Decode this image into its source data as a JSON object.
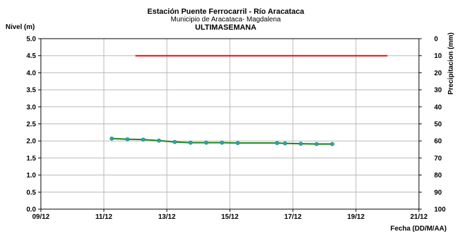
{
  "chart_data": {
    "type": "line",
    "title": "Estación Puente Ferrocarril - Río Aracataca",
    "subtitle": "Municipio de Aracataca- Magdalena",
    "period": "ULTIMASEMANA",
    "ylabel": "Nivel (m)",
    "y2label": "Precipitacion (mm)",
    "xlabel": "Fecha (DD/M/AA)",
    "ylim": [
      0,
      5
    ],
    "y2lim": [
      0,
      100
    ],
    "y2_inverted": true,
    "x_ticks": [
      "09/12",
      "11/12",
      "13/12",
      "15/12",
      "17/12",
      "19/12",
      "21/12"
    ],
    "y_ticks": [
      "0.0",
      "0.5",
      "1.0",
      "1.5",
      "2.0",
      "2.5",
      "3.0",
      "3.5",
      "4.0",
      "4.5",
      "5.0"
    ],
    "y2_ticks": [
      "0",
      "10",
      "20",
      "30",
      "40",
      "50",
      "60",
      "70",
      "80",
      "90",
      "100"
    ],
    "grid": true,
    "series": [
      {
        "color": "#228b22",
        "marker_color": "#2aa6a6",
        "axis": "left",
        "points": [
          {
            "x": "11/12 06:00",
            "y": 2.07
          },
          {
            "x": "11/12 18:00",
            "y": 2.05
          },
          {
            "x": "12/12 06:00",
            "y": 2.04
          },
          {
            "x": "12/12 18:00",
            "y": 2.01
          },
          {
            "x": "13/12 06:00",
            "y": 1.97
          },
          {
            "x": "13/12 18:00",
            "y": 1.95
          },
          {
            "x": "14/12 06:00",
            "y": 1.95
          },
          {
            "x": "14/12 18:00",
            "y": 1.95
          },
          {
            "x": "15/12 06:00",
            "y": 1.94
          },
          {
            "x": "16/12 12:00",
            "y": 1.94
          },
          {
            "x": "16/12 18:00",
            "y": 1.93
          },
          {
            "x": "17/12 06:00",
            "y": 1.92
          },
          {
            "x": "17/12 18:00",
            "y": 1.91
          },
          {
            "x": "18/12 06:00",
            "y": 1.91
          }
        ]
      },
      {
        "color": "#ff0000",
        "axis": "left",
        "points": [
          {
            "x": "12/12 00:00",
            "y": 4.5
          },
          {
            "x": "20/12 00:00",
            "y": 4.5
          }
        ]
      }
    ]
  }
}
